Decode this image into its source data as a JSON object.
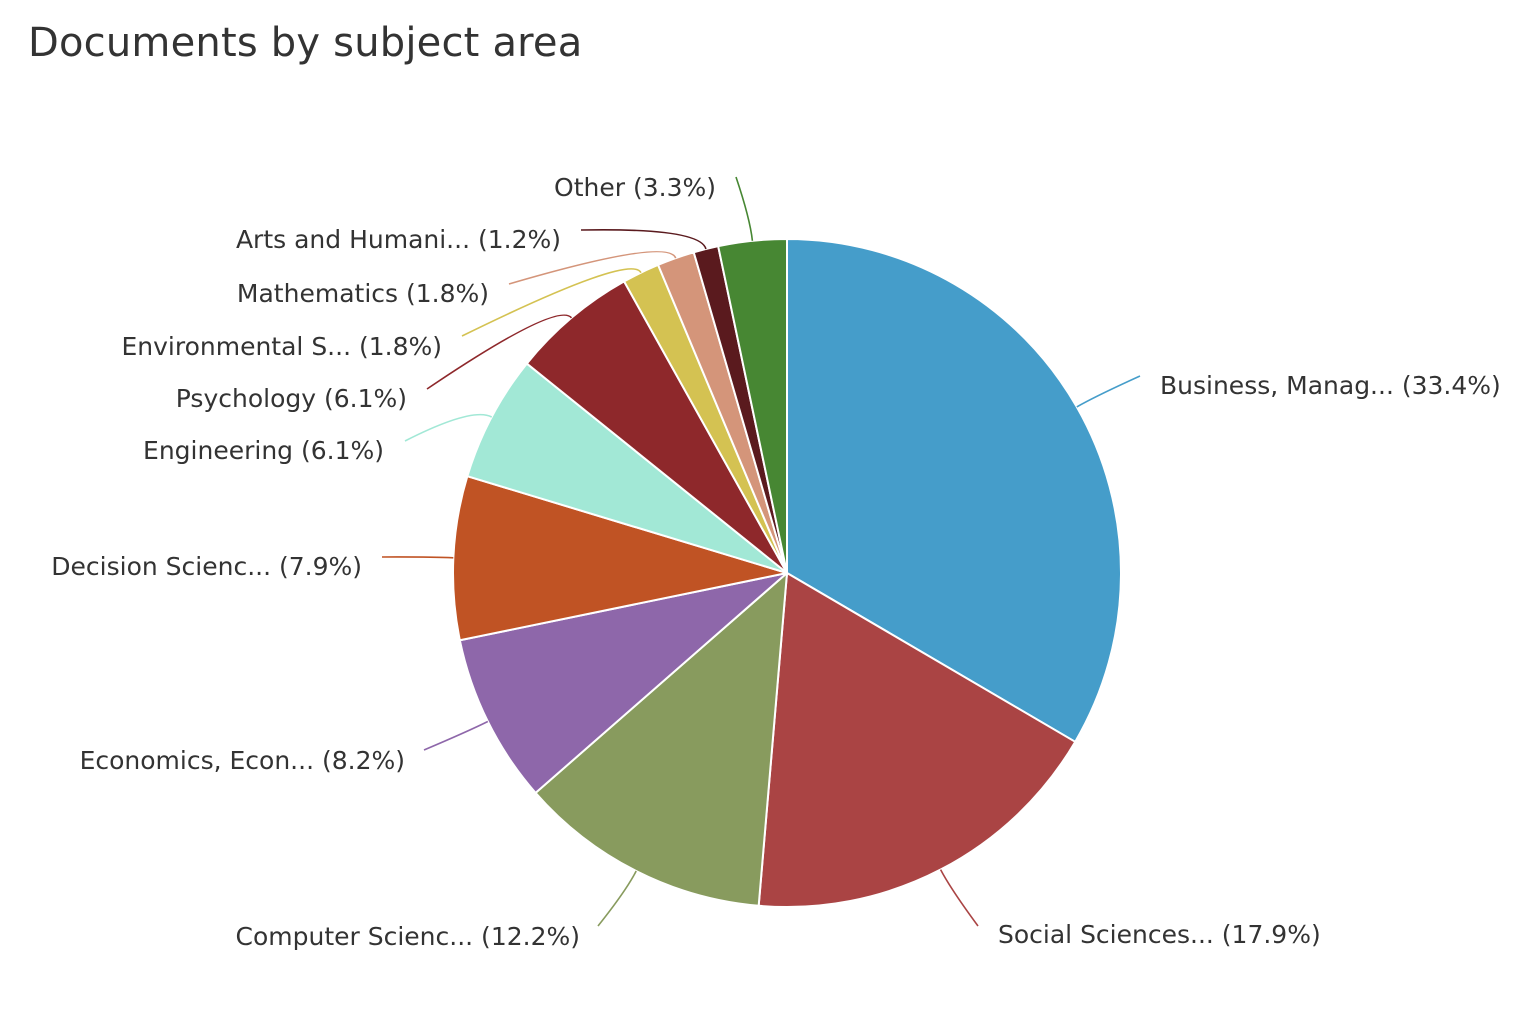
{
  "chart_data": {
    "type": "pie",
    "title": "Documents by subject area",
    "slices": [
      {
        "label": "Business, Manag... (33.4%)",
        "value": 33.4,
        "color": "#459dca"
      },
      {
        "label": "Social Sciences... (17.9%)",
        "value": 17.9,
        "color": "#aa4444"
      },
      {
        "label": "Computer Scienc... (12.2%)",
        "value": 12.2,
        "color": "#889b5e"
      },
      {
        "label": "Economics, Econ... (8.2%)",
        "value": 8.2,
        "color": "#8e67aa"
      },
      {
        "label": "Decision Scienc... (7.9%)",
        "value": 7.9,
        "color": "#c05324"
      },
      {
        "label": "Engineering (6.1%)",
        "value": 6.1,
        "color": "#a2e8d6"
      },
      {
        "label": "Psychology (6.1%)",
        "value": 6.1,
        "color": "#8e282b"
      },
      {
        "label": "Environmental S... (1.8%)",
        "value": 1.8,
        "color": "#d4c252"
      },
      {
        "label": "Mathematics (1.8%)",
        "value": 1.8,
        "color": "#d4957a"
      },
      {
        "label": "Arts and Humani... (1.2%)",
        "value": 1.2,
        "color": "#5a1a1e"
      },
      {
        "label": "Other (3.3%)",
        "value": 3.3,
        "color": "#478733"
      }
    ]
  }
}
